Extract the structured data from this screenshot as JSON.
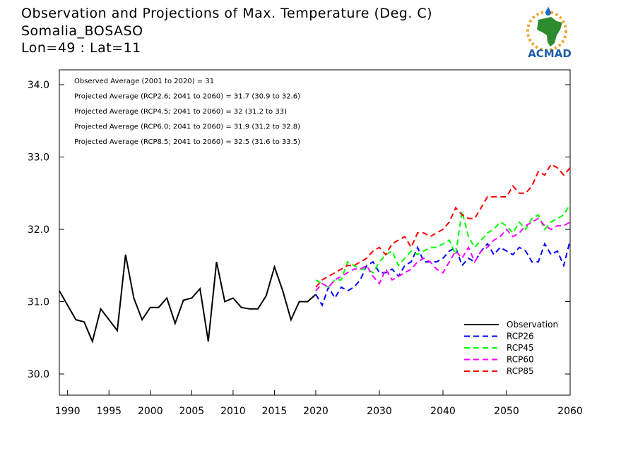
{
  "header": {
    "title": "Observation and Projections of Max. Temperature (Deg. C)",
    "location": "Somalia_BOSASO",
    "coords": "Lon=49 : Lat=11"
  },
  "logo": {
    "text": "ACMAD"
  },
  "chart_data": {
    "type": "line",
    "title": "Observation and Projections of Max. Temperature (Deg. C)",
    "xlim": [
      1989,
      2060
    ],
    "ylim": [
      29.7,
      34.2
    ],
    "x_ticks": [
      1990,
      1995,
      2000,
      2005,
      2010,
      2015,
      2020,
      2030,
      2040,
      2050,
      2060
    ],
    "y_ticks": [
      30.0,
      31.0,
      32.0,
      33.0,
      34.0
    ],
    "y_tick_labels": [
      "30.0",
      "31.0",
      "32.0",
      "33.0",
      "34.0"
    ],
    "legend_position": "bottom-right",
    "annotations": [
      "Observed Average (2001 to 2020) = 31",
      "Projected Average (RCP2.6; 2041 to 2060) = 31.7 (30.9 to 32.6)",
      "Projected Average (RCP4.5; 2041 to 2060) = 32 (31.2 to 33)",
      "Projected Average (RCP6.0; 2041 to 2060) = 31.9 (31.2 to 32.8)",
      "Projected Average (RCP8.5; 2041 to 2060) = 32.5 (31.6 to 33.5)"
    ],
    "series": [
      {
        "name": "Observation",
        "color": "#000000",
        "dashed": false,
        "x": [
          1989,
          1990,
          1991,
          1992,
          1993,
          1994,
          1995,
          1996,
          1997,
          1998,
          1999,
          2000,
          2001,
          2002,
          2003,
          2004,
          2005,
          2006,
          2007,
          2008,
          2009,
          2010,
          2011,
          2012,
          2013,
          2014,
          2015,
          2016,
          2017,
          2018,
          2019,
          2020
        ],
        "values": [
          31.15,
          30.95,
          30.75,
          30.72,
          30.45,
          30.9,
          30.75,
          30.6,
          31.65,
          31.05,
          30.75,
          30.92,
          30.92,
          31.05,
          30.7,
          31.02,
          31.05,
          31.18,
          30.45,
          31.55,
          31.0,
          31.05,
          30.92,
          30.9,
          30.9,
          31.08,
          31.48,
          31.15,
          30.75,
          31.0,
          31.0,
          31.1
        ]
      },
      {
        "name": "RCP26",
        "color": "#0000ff",
        "dashed": true,
        "x": [
          2020,
          2021,
          2022,
          2023,
          2024,
          2025,
          2026,
          2027,
          2028,
          2029,
          2030,
          2031,
          2032,
          2033,
          2034,
          2035,
          2036,
          2037,
          2038,
          2039,
          2040,
          2041,
          2042,
          2043,
          2044,
          2045,
          2046,
          2047,
          2048,
          2049,
          2050,
          2051,
          2052,
          2053,
          2054,
          2055,
          2056,
          2057,
          2058,
          2059,
          2060
        ],
        "values": [
          31.1,
          30.95,
          31.2,
          31.05,
          31.2,
          31.15,
          31.2,
          31.3,
          31.5,
          31.55,
          31.4,
          31.4,
          31.45,
          31.35,
          31.5,
          31.55,
          31.75,
          31.55,
          31.55,
          31.55,
          31.6,
          31.7,
          31.75,
          31.5,
          31.6,
          31.55,
          31.7,
          31.8,
          31.65,
          31.75,
          31.7,
          31.65,
          31.75,
          31.7,
          31.55,
          31.55,
          31.8,
          31.65,
          31.7,
          31.5,
          31.85
        ]
      },
      {
        "name": "RCP45",
        "color": "#00ff00",
        "dashed": true,
        "x": [
          2020,
          2021,
          2022,
          2023,
          2024,
          2025,
          2026,
          2027,
          2028,
          2029,
          2030,
          2031,
          2032,
          2033,
          2034,
          2035,
          2036,
          2037,
          2038,
          2039,
          2040,
          2041,
          2042,
          2043,
          2044,
          2045,
          2046,
          2047,
          2048,
          2049,
          2050,
          2051,
          2052,
          2053,
          2054,
          2055,
          2056,
          2057,
          2058,
          2059,
          2060
        ],
        "values": [
          31.3,
          31.25,
          31.2,
          31.3,
          31.3,
          31.55,
          31.5,
          31.45,
          31.45,
          31.4,
          31.55,
          31.65,
          31.7,
          31.5,
          31.6,
          31.7,
          31.65,
          31.7,
          31.75,
          31.75,
          31.8,
          31.85,
          31.65,
          32.25,
          31.9,
          31.75,
          31.85,
          31.95,
          32.0,
          32.1,
          32.05,
          31.95,
          32.1,
          32.0,
          32.15,
          32.2,
          32.0,
          32.1,
          32.15,
          32.2,
          32.35
        ]
      },
      {
        "name": "RCP60",
        "color": "#ff00ff",
        "dashed": true,
        "x": [
          2020,
          2021,
          2022,
          2023,
          2024,
          2025,
          2026,
          2027,
          2028,
          2029,
          2030,
          2031,
          2032,
          2033,
          2034,
          2035,
          2036,
          2037,
          2038,
          2039,
          2040,
          2041,
          2042,
          2043,
          2044,
          2045,
          2046,
          2047,
          2048,
          2049,
          2050,
          2051,
          2052,
          2053,
          2054,
          2055,
          2056,
          2057,
          2058,
          2059,
          2060
        ],
        "values": [
          31.15,
          31.25,
          31.2,
          31.3,
          31.35,
          31.4,
          31.45,
          31.45,
          31.5,
          31.35,
          31.25,
          31.45,
          31.3,
          31.35,
          31.4,
          31.45,
          31.55,
          31.6,
          31.55,
          31.45,
          31.4,
          31.55,
          31.7,
          31.6,
          31.75,
          31.55,
          31.7,
          31.75,
          31.85,
          31.9,
          32.0,
          31.9,
          31.95,
          32.05,
          32.1,
          32.15,
          32.05,
          32.0,
          32.05,
          32.05,
          32.1
        ]
      },
      {
        "name": "RCP85",
        "color": "#ff0000",
        "dashed": true,
        "x": [
          2020,
          2021,
          2022,
          2023,
          2024,
          2025,
          2026,
          2027,
          2028,
          2029,
          2030,
          2031,
          2032,
          2033,
          2034,
          2035,
          2036,
          2037,
          2038,
          2039,
          2040,
          2041,
          2042,
          2043,
          2044,
          2045,
          2046,
          2047,
          2048,
          2049,
          2050,
          2051,
          2052,
          2053,
          2054,
          2055,
          2056,
          2057,
          2058,
          2059,
          2060
        ],
        "values": [
          31.2,
          31.3,
          31.35,
          31.4,
          31.45,
          31.5,
          31.5,
          31.55,
          31.6,
          31.7,
          31.75,
          31.65,
          31.8,
          31.85,
          31.9,
          31.75,
          31.95,
          31.95,
          31.9,
          31.95,
          32.0,
          32.1,
          32.3,
          32.2,
          32.15,
          32.15,
          32.3,
          32.45,
          32.45,
          32.45,
          32.45,
          32.6,
          32.5,
          32.5,
          32.6,
          32.8,
          32.75,
          32.9,
          32.85,
          32.75,
          32.85
        ]
      }
    ]
  }
}
